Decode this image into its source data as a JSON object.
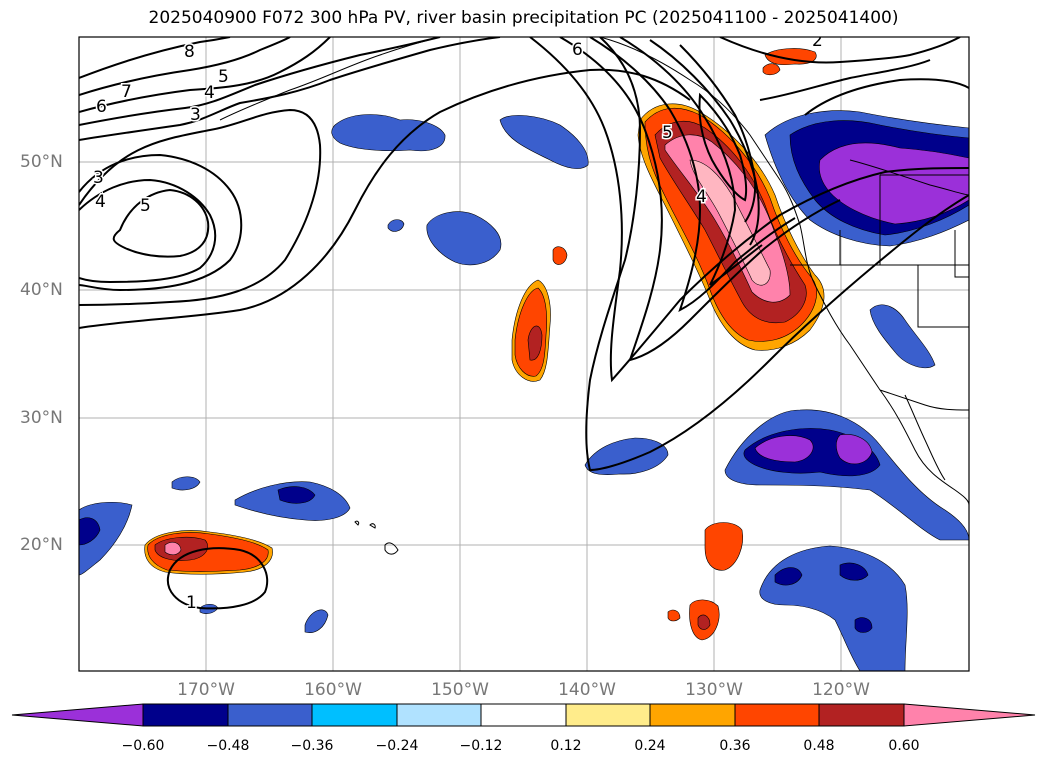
{
  "title": "2025040900 F072 300 hPa PV, river basin precipitation PC (2025041100 - 2025041400)",
  "lat_labels": [
    "50°N",
    "40°N",
    "30°N",
    "20°N"
  ],
  "lon_labels": [
    "170°W",
    "160°W",
    "150°W",
    "140°W",
    "130°W",
    "120°W"
  ],
  "contour_labels": [
    "8",
    "7",
    "6",
    "5",
    "4",
    "3",
    "3",
    "4",
    "5",
    "6",
    "2",
    "5",
    "4",
    "1"
  ],
  "colorbar": {
    "ticks": [
      "−0.60",
      "−0.48",
      "−0.36",
      "−0.24",
      "−0.12",
      "0.12",
      "0.24",
      "0.36",
      "0.48",
      "0.60"
    ],
    "colors": [
      "#9b30d9",
      "#00008b",
      "#3a5fcd",
      "#00bfff",
      "#b0e2ff",
      "#ffffff",
      "#ffec8b",
      "#ffa500",
      "#ff4500",
      "#b22222",
      "#ff82ab"
    ]
  }
}
